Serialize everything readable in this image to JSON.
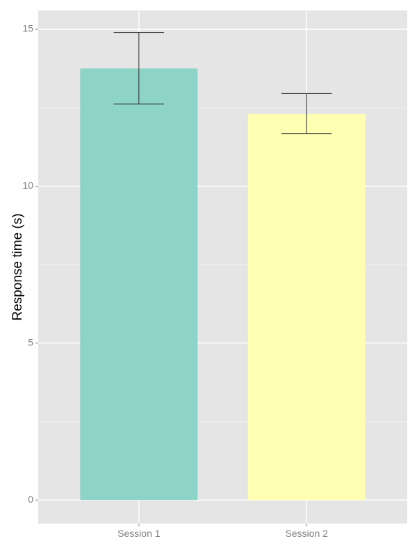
{
  "chart_data": {
    "type": "bar",
    "title": "",
    "xlabel": "",
    "ylabel": "Response time (s)",
    "categories": [
      "Session 1",
      "Session 2"
    ],
    "values": [
      13.75,
      12.3
    ],
    "error_bars": [
      {
        "low": 12.62,
        "high": 14.9
      },
      {
        "low": 11.68,
        "high": 12.95
      }
    ],
    "bar_colors": [
      "#8dd3c7",
      "#ffffb3"
    ],
    "ylim": [
      -0.75,
      15.6
    ],
    "yticks": [
      0,
      5,
      10,
      15
    ],
    "grid": true,
    "panel_background": "#e5e5e5",
    "legend": "none"
  }
}
